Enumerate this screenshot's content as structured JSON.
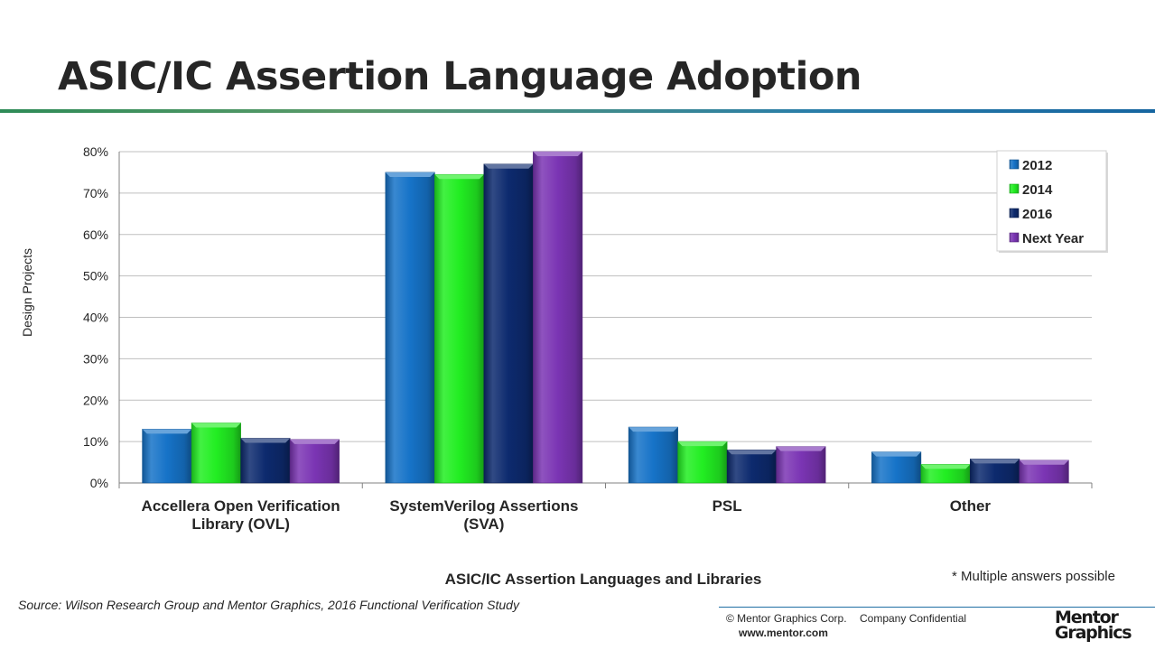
{
  "title": "ASIC/IC Assertion Language Adoption",
  "footnote": "* Multiple answers possible",
  "source": "Source:  Wilson Research Group and Mentor Graphics, 2016 Functional Verification Study",
  "footer": {
    "copyright": "© Mentor Graphics Corp.",
    "confidential": "Company Confidential",
    "website": "www.mentor.com",
    "logo_line1": "Mentor",
    "logo_line2": "Graphics"
  },
  "colors": {
    "s2012": "#1673c8",
    "s2014": "#22ee22",
    "s2016": "#0d2a6e",
    "snext": "#7b35b4",
    "gridline": "#bfbfbf",
    "axis": "#808080"
  },
  "chart_data": {
    "type": "bar",
    "xlabel": "ASIC/IC Assertion Languages and Libraries",
    "ylabel": "Design Projects",
    "ylim": [
      0,
      80
    ],
    "yticks": [
      0,
      10,
      20,
      30,
      40,
      50,
      60,
      70,
      80
    ],
    "ytick_labels": [
      "0%",
      "10%",
      "20%",
      "30%",
      "40%",
      "50%",
      "60%",
      "70%",
      "80%"
    ],
    "grid": true,
    "legend_position": "top-right",
    "categories": [
      [
        "Accellera Open Verification",
        "Library (OVL)"
      ],
      [
        "SystemVerilog Assertions",
        "(SVA)"
      ],
      [
        "PSL"
      ],
      [
        "Other"
      ]
    ],
    "series": [
      {
        "name": "2012",
        "color_key": "s2012",
        "values": [
          13,
          75,
          13.5,
          7.5
        ]
      },
      {
        "name": "2014",
        "color_key": "s2014",
        "values": [
          14.5,
          74.5,
          10,
          4.5
        ]
      },
      {
        "name": "2016",
        "color_key": "s2016",
        "values": [
          10.8,
          77,
          8,
          5.8
        ]
      },
      {
        "name": "Next Year",
        "color_key": "snext",
        "values": [
          10.5,
          80,
          8.8,
          5.5
        ]
      }
    ]
  }
}
